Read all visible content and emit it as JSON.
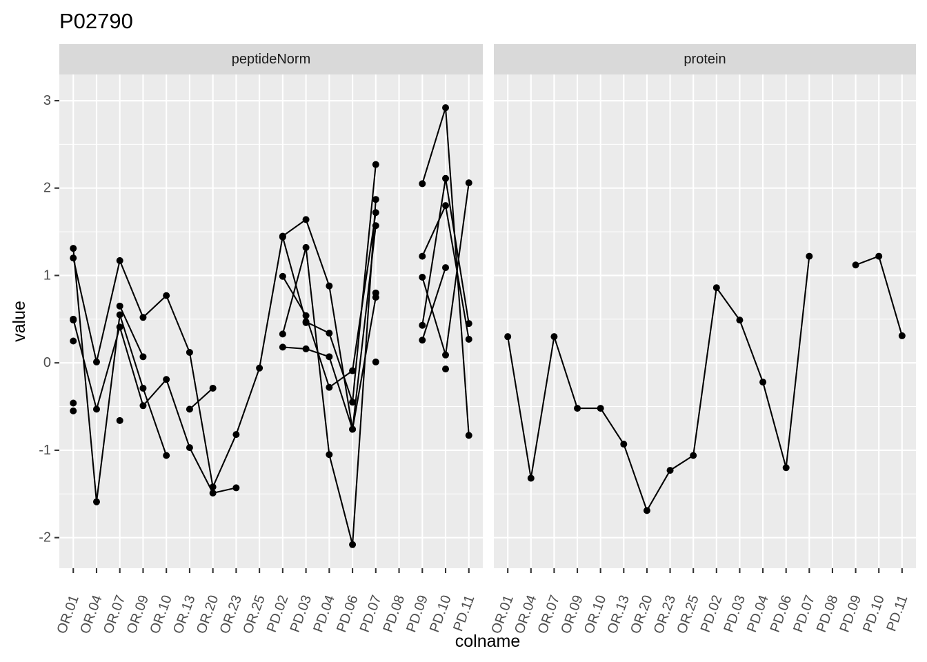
{
  "chart_data": {
    "type": "line",
    "title": "P02790",
    "xlabel": "colname",
    "ylabel": "value",
    "ylim": [
      -2.35,
      3.3
    ],
    "y_ticks": [
      -2,
      -1,
      0,
      1,
      2,
      3
    ],
    "y_tick_labels": [
      "-2",
      "-1",
      "0",
      "1",
      "2",
      "3"
    ],
    "categories": [
      "OR.01",
      "OR.04",
      "OR.07",
      "OR.09",
      "OR.10",
      "OR.13",
      "OR.20",
      "OR.23",
      "OR.25",
      "PD.02",
      "PD.03",
      "PD.04",
      "PD.06",
      "PD.07",
      "PD.08",
      "PD.09",
      "PD.10",
      "PD.11"
    ],
    "grid": true,
    "legend": "none",
    "facets": [
      {
        "label": "peptideNorm",
        "series": [
          {
            "values": [
              1.31,
              -1.59,
              0.55,
              -0.29,
              -1.06,
              null,
              null,
              null,
              null,
              1.44,
              0.47,
              0.34,
              -0.45,
              2.27,
              null,
              0.98,
              0.09,
              2.06
            ]
          },
          {
            "values": [
              1.2,
              0.01,
              1.17,
              0.52,
              0.77,
              0.12,
              -1.42,
              -0.82,
              -0.06,
              1.45,
              1.64,
              0.88,
              -0.76,
              0.75,
              null,
              0.43,
              2.11,
              0.45
            ]
          },
          {
            "values": [
              0.5,
              -0.53,
              0.41,
              -0.49,
              -0.19,
              -0.97,
              -1.49,
              -1.43,
              null,
              0.99,
              0.54,
              -0.28,
              -0.09,
              1.72,
              null,
              2.05,
              2.92,
              -0.83
            ]
          },
          {
            "values": [
              0.25,
              null,
              0.65,
              0.07,
              null,
              -0.53,
              -0.29,
              null,
              null,
              0.33,
              1.32,
              -1.05,
              -2.08,
              1.87,
              null,
              1.22,
              1.8,
              0.27
            ]
          },
          {
            "values": [
              -0.46,
              null,
              -0.66,
              null,
              null,
              null,
              null,
              null,
              null,
              0.18,
              0.16,
              0.07,
              -0.76,
              1.57,
              null,
              0.26,
              1.09,
              null
            ]
          },
          {
            "values": [
              -0.55,
              null,
              null,
              null,
              null,
              null,
              null,
              null,
              null,
              null,
              0.46,
              null,
              null,
              0.8,
              null,
              null,
              -0.07,
              null
            ]
          },
          {
            "values": [
              0.49,
              null,
              null,
              null,
              null,
              null,
              null,
              null,
              null,
              null,
              null,
              null,
              null,
              0.01,
              null,
              null,
              null,
              null
            ]
          }
        ]
      },
      {
        "label": "protein",
        "series": [
          {
            "values": [
              0.3,
              -1.32,
              0.3,
              -0.52,
              -0.52,
              -0.93,
              -1.69,
              -1.23,
              -1.06,
              0.86,
              0.49,
              -0.22,
              -1.2,
              1.22,
              null,
              1.12,
              1.22,
              0.31
            ]
          }
        ]
      }
    ]
  }
}
